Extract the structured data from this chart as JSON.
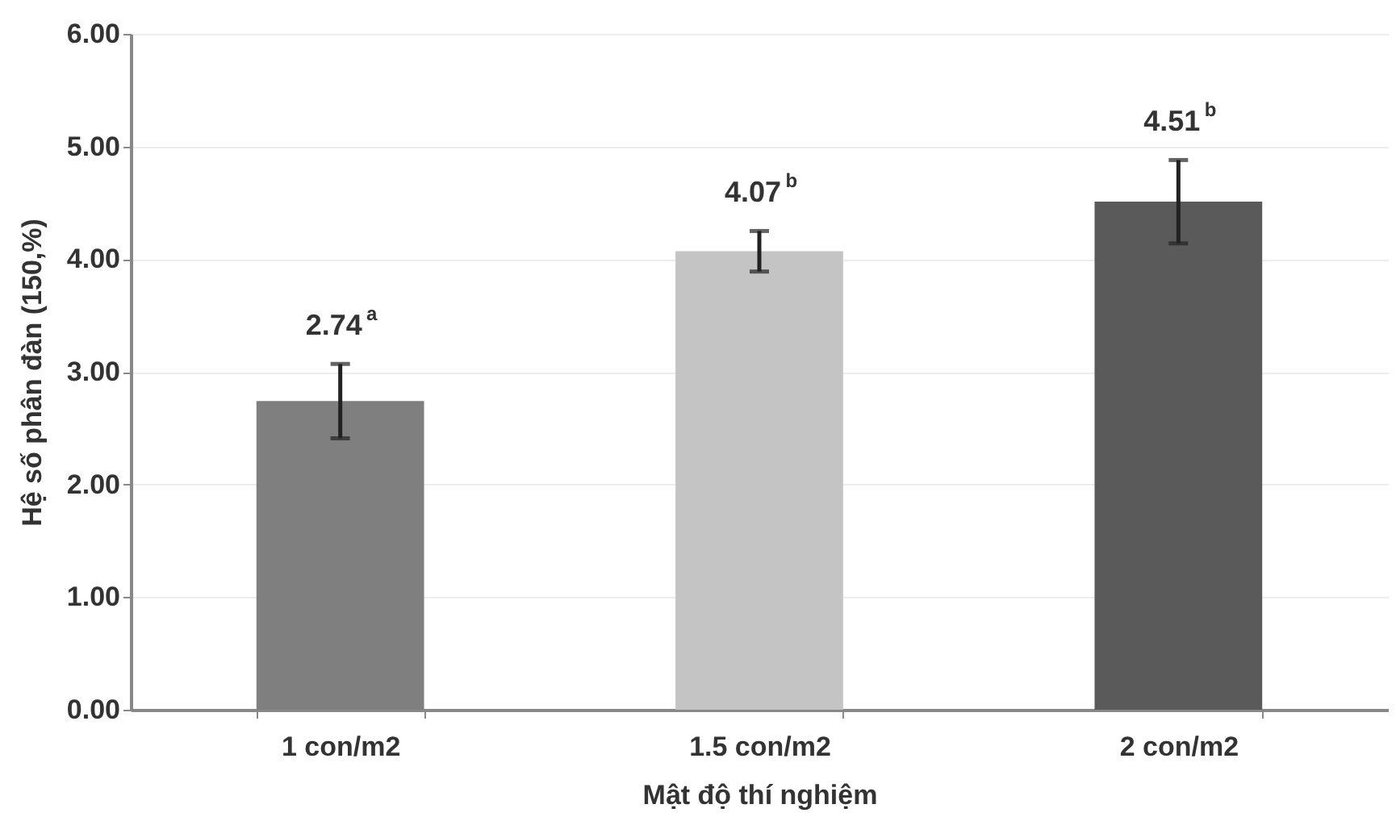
{
  "chart_data": {
    "type": "bar",
    "xlabel": "Mật độ thí nghiệm",
    "ylabel": "Hệ số phân đàn (150,%)",
    "categories": [
      "1 con/m2",
      "1.5 con/m2",
      "2 con/m2"
    ],
    "values": [
      2.74,
      4.07,
      4.51
    ],
    "colors": [
      "#7f7f7f",
      "#c4c4c4",
      "#5a5a5a"
    ],
    "errors": [
      0.33,
      0.18,
      0.37
    ],
    "value_labels": [
      "2.74$^{a}$",
      "4.07$^{b}$",
      "4.51$^{b}$"
    ],
    "ylim": [
      0,
      6
    ],
    "yticks": [
      {
        "value": 0,
        "label": "0.00"
      },
      {
        "value": 1,
        "label": "1.00"
      },
      {
        "value": 2,
        "label": "2.00"
      },
      {
        "value": 3,
        "label": "3.00"
      },
      {
        "value": 4,
        "label": "4.00"
      },
      {
        "value": 5,
        "label": "5.00"
      },
      {
        "value": 6,
        "label": "6.00"
      }
    ],
    "grid": "y"
  }
}
